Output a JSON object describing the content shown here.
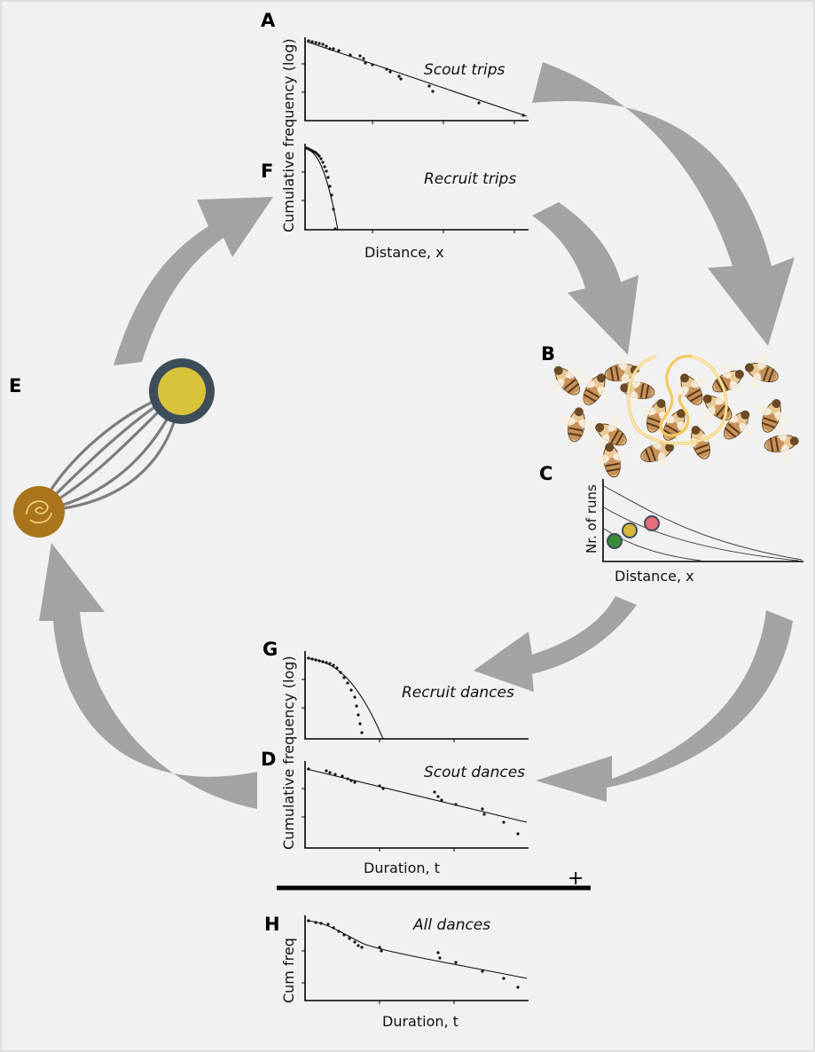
{
  "panels": {
    "A": {
      "letter": "A",
      "title": "Scout trips"
    },
    "F": {
      "letter": "F",
      "title": "Recruit trips"
    },
    "B": {
      "letter": "B"
    },
    "C": {
      "letter": "C",
      "ylabel": "Nr. of runs",
      "xlabel": "Distance, x"
    },
    "E": {
      "letter": "E"
    },
    "G": {
      "letter": "G",
      "title": "Recruit dances"
    },
    "D": {
      "letter": "D",
      "title": "Scout dances"
    },
    "H": {
      "letter": "H",
      "title": "All dances",
      "ylabel": "Cum freq",
      "xlabel": "Duration, t"
    }
  },
  "trips_axes": {
    "ylabel": "Cumulative frequency (log)",
    "xlabel": "Distance, x"
  },
  "dances_axes": {
    "ylabel": "Cumulative frequency (log)",
    "xlabel": "Duration, t"
  },
  "sum_sign": "+",
  "colors": {
    "arrow": "#a3a3a3",
    "food_outer": "#3d4e5a",
    "food_inner": "#d8c23a",
    "hive": "#a9741b",
    "dot_green": "#3a8a3a",
    "dot_yellow": "#d8b63a",
    "dot_red": "#e86b7a"
  },
  "icons": [
    "foraging-petal-icon",
    "hive-icon",
    "food-source-icon",
    "bee-swarm-image",
    "waggle-dance-loop-icon"
  ]
}
